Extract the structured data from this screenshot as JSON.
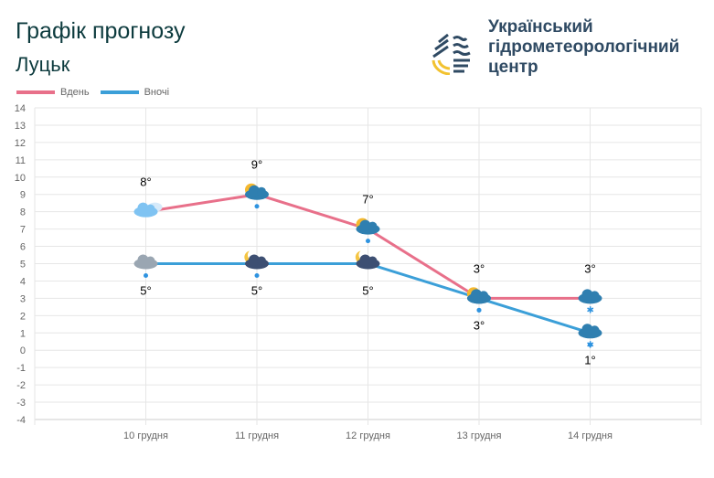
{
  "header": {
    "title": "Графік прогнозу",
    "city": "Луцьк"
  },
  "logo": {
    "org_line1": "Український",
    "org_line2": "гідрометеорологічний",
    "org_line3": "центр"
  },
  "chart_data": {
    "type": "line",
    "categories": [
      "10 грудня",
      "11 грудня",
      "12 грудня",
      "13 грудня",
      "14 грудня"
    ],
    "series": [
      {
        "name": "Вдень",
        "color": "#e8708a",
        "values": [
          8,
          9,
          7,
          3,
          3
        ],
        "labels": [
          "8°",
          "9°",
          "7°",
          "3°",
          "3°"
        ],
        "icons": [
          "cloudy",
          "partly-cloudy-rain",
          "partly-cloudy-rain",
          "partly-cloudy-rain",
          "cloud-snow"
        ]
      },
      {
        "name": "Вночі",
        "color": "#3b9fd8",
        "values": [
          5,
          5,
          5,
          3,
          1
        ],
        "labels": [
          "5°",
          "5°",
          "5°",
          "3°",
          "1°"
        ],
        "icons": [
          "cloud-rain",
          "moon-cloud-rain",
          "moon-cloud",
          "partly-cloudy-rain",
          "cloud-rain-snow"
        ]
      }
    ],
    "ylim": [
      -4,
      14
    ],
    "yticks": [
      14,
      13,
      12,
      11,
      10,
      9,
      8,
      7,
      6,
      5,
      4,
      3,
      2,
      1,
      0,
      -1,
      -2,
      -3,
      -4
    ],
    "grid": true,
    "legend": "top-left"
  }
}
